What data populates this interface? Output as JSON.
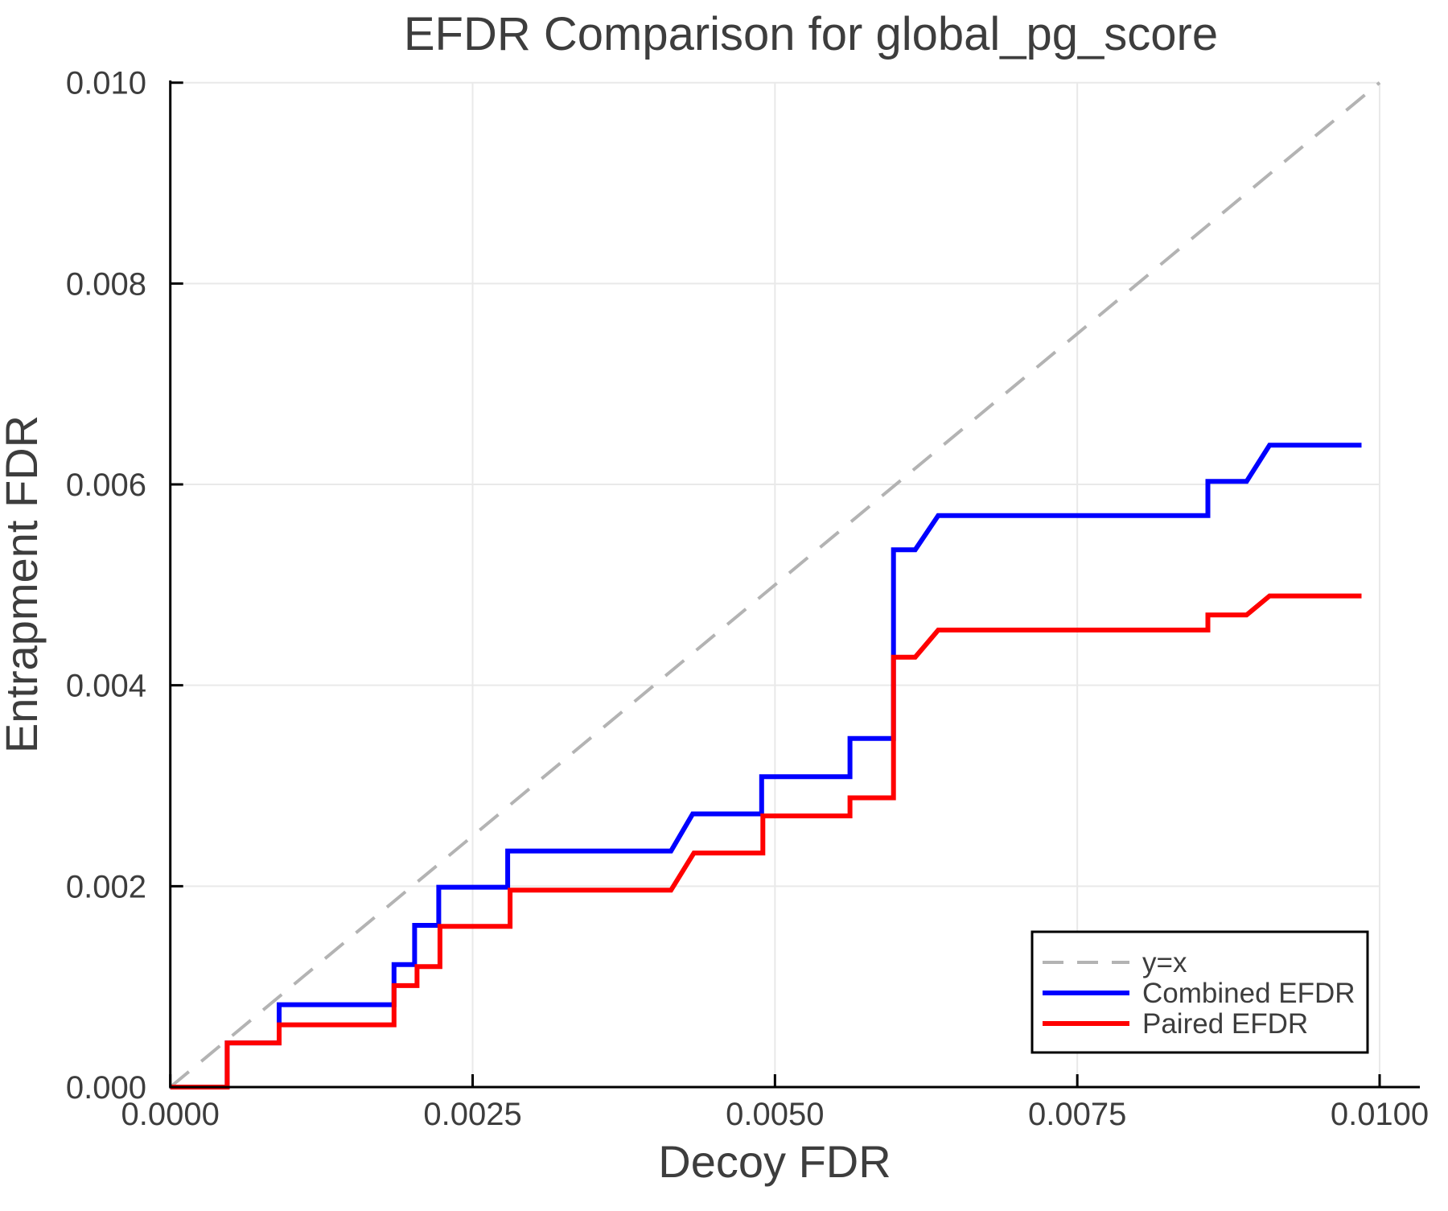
{
  "title": "EFDR Comparison for global_pg_score",
  "colors": {
    "combined": "#0000ff",
    "paired": "#ff0000",
    "identity": "#b3b3b3",
    "grid": "#e9e9e9",
    "spine": "#000000",
    "text": "#3d3d3d",
    "legend_border": "#000000",
    "legend_bg": "#ffffff"
  },
  "chart_data": {
    "type": "line",
    "title": "EFDR Comparison for global_pg_score",
    "xlabel": "Decoy FDR",
    "ylabel": "Entrapment FDR",
    "xlim": [
      0,
      0.01
    ],
    "ylim": [
      0,
      0.01
    ],
    "grid": true,
    "x_ticks": {
      "values": [
        0,
        0.0025,
        0.005,
        0.0075,
        0.01
      ],
      "labels": [
        "0.0000",
        "0.0025",
        "0.0050",
        "0.0075",
        "0.0100"
      ]
    },
    "y_ticks": {
      "values": [
        0,
        0.002,
        0.004,
        0.006,
        0.008,
        0.01
      ],
      "labels": [
        "0.000",
        "0.002",
        "0.004",
        "0.006",
        "0.008",
        "0.010"
      ]
    },
    "legend": {
      "position": "lower right",
      "entries": [
        {
          "id": "identity-line",
          "label": "y=x",
          "color": "#b3b3b3",
          "dash": true,
          "width": 4
        },
        {
          "id": "combined-efdr-line",
          "label": "Combined EFDR",
          "color": "#0000ff",
          "dash": false,
          "width": 6
        },
        {
          "id": "paired-efdr-line",
          "label": "Paired EFDR",
          "color": "#ff0000",
          "dash": false,
          "width": 6
        }
      ]
    },
    "series": [
      {
        "id": "identity-line",
        "name": "y=x",
        "color": "#b3b3b3",
        "dash": true,
        "width": 4,
        "points": [
          [
            0,
            0
          ],
          [
            0.01,
            0.01
          ]
        ]
      },
      {
        "id": "combined-efdr-line",
        "name": "Combined EFDR",
        "color": "#0000ff",
        "dash": false,
        "width": 6,
        "points": [
          [
            0,
            0
          ],
          [
            0.00047,
            0
          ],
          [
            0.00047,
            0.00044
          ],
          [
            0.0009,
            0.00044
          ],
          [
            0.0009,
            0.00082
          ],
          [
            0.00185,
            0.00082
          ],
          [
            0.00185,
            0.00122
          ],
          [
            0.00202,
            0.00122
          ],
          [
            0.00202,
            0.00161
          ],
          [
            0.00222,
            0.00161
          ],
          [
            0.00222,
            0.00199
          ],
          [
            0.00279,
            0.00199
          ],
          [
            0.00279,
            0.00235
          ],
          [
            0.00414,
            0.00235
          ],
          [
            0.00432,
            0.00272
          ],
          [
            0.00489,
            0.00272
          ],
          [
            0.00489,
            0.00309
          ],
          [
            0.00562,
            0.00309
          ],
          [
            0.00562,
            0.00347
          ],
          [
            0.00598,
            0.00347
          ],
          [
            0.00598,
            0.00535
          ],
          [
            0.00616,
            0.00535
          ],
          [
            0.00635,
            0.00569
          ],
          [
            0.00858,
            0.00569
          ],
          [
            0.00858,
            0.00603
          ],
          [
            0.0089,
            0.00603
          ],
          [
            0.00909,
            0.00639
          ],
          [
            0.00985,
            0.00639
          ]
        ]
      },
      {
        "id": "paired-efdr-line",
        "name": "Paired EFDR",
        "color": "#ff0000",
        "dash": false,
        "width": 6,
        "points": [
          [
            0,
            0
          ],
          [
            0.00047,
            0
          ],
          [
            0.00047,
            0.00044
          ],
          [
            0.0009,
            0.00044
          ],
          [
            0.0009,
            0.00062
          ],
          [
            0.00185,
            0.00062
          ],
          [
            0.00185,
            0.00101
          ],
          [
            0.00204,
            0.00101
          ],
          [
            0.00204,
            0.0012
          ],
          [
            0.00223,
            0.0012
          ],
          [
            0.00223,
            0.0016
          ],
          [
            0.00281,
            0.0016
          ],
          [
            0.00281,
            0.00196
          ],
          [
            0.00414,
            0.00196
          ],
          [
            0.00433,
            0.00233
          ],
          [
            0.0049,
            0.00233
          ],
          [
            0.0049,
            0.0027
          ],
          [
            0.00562,
            0.0027
          ],
          [
            0.00562,
            0.00288
          ],
          [
            0.00598,
            0.00288
          ],
          [
            0.00598,
            0.00428
          ],
          [
            0.00616,
            0.00428
          ],
          [
            0.00635,
            0.00455
          ],
          [
            0.00858,
            0.00455
          ],
          [
            0.00858,
            0.0047
          ],
          [
            0.0089,
            0.0047
          ],
          [
            0.00909,
            0.00489
          ],
          [
            0.00985,
            0.00489
          ]
        ]
      }
    ]
  }
}
